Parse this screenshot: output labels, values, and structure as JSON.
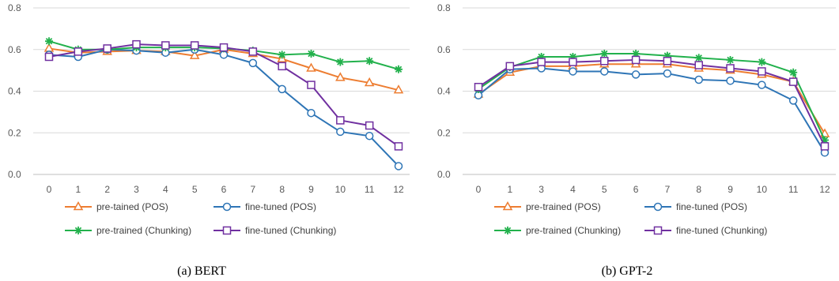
{
  "chart_data": [
    {
      "type": "line",
      "caption": "(a) BERT",
      "categories": [
        "0",
        "1",
        "2",
        "3",
        "4",
        "5",
        "6",
        "7",
        "8",
        "9",
        "10",
        "11",
        "12"
      ],
      "ylim": [
        0,
        0.8
      ],
      "yticks": [
        "0.0",
        "0.2",
        "0.4",
        "0.6",
        "0.8"
      ],
      "grid": true,
      "legend_position": "bottom",
      "series": [
        {
          "name": "pre-tained (POS)",
          "color": "#ED7D31",
          "marker": "triangle",
          "values": [
            0.605,
            0.585,
            0.59,
            0.595,
            0.59,
            0.57,
            0.6,
            0.58,
            0.555,
            0.51,
            0.465,
            0.44,
            0.405
          ]
        },
        {
          "name": "fine-tuned (POS)",
          "color": "#2E75B6",
          "marker": "circle",
          "values": [
            0.575,
            0.565,
            0.6,
            0.595,
            0.585,
            0.6,
            0.575,
            0.535,
            0.41,
            0.295,
            0.205,
            0.185,
            0.04
          ]
        },
        {
          "name": "pre-trained (Chunking)",
          "color": "#22B14C",
          "marker": "star",
          "values": [
            0.64,
            0.6,
            0.6,
            0.61,
            0.61,
            0.61,
            0.605,
            0.595,
            0.575,
            0.58,
            0.54,
            0.545,
            0.505
          ]
        },
        {
          "name": "fine-tuned (Chunking)",
          "color": "#7030A0",
          "marker": "square",
          "values": [
            0.565,
            0.59,
            0.605,
            0.625,
            0.62,
            0.62,
            0.61,
            0.59,
            0.52,
            0.43,
            0.26,
            0.235,
            0.135
          ]
        }
      ]
    },
    {
      "type": "line",
      "caption": "(b) GPT-2",
      "categories": [
        "0",
        "1",
        "3",
        "4",
        "5",
        "6",
        "7",
        "8",
        "9",
        "10",
        "11",
        "12"
      ],
      "ylim": [
        0,
        0.8
      ],
      "yticks": [
        "0.0",
        "0.2",
        "0.4",
        "0.6",
        "0.8"
      ],
      "grid": true,
      "legend_position": "bottom",
      "series": [
        {
          "name": "pre-trained (POS)",
          "color": "#ED7D31",
          "marker": "triangle",
          "values": [
            0.385,
            0.49,
            0.52,
            0.52,
            0.53,
            0.53,
            0.53,
            0.51,
            0.5,
            0.48,
            0.445,
            0.195
          ]
        },
        {
          "name": "fine-tuned (POS)",
          "color": "#2E75B6",
          "marker": "circle",
          "values": [
            0.38,
            0.505,
            0.51,
            0.495,
            0.495,
            0.48,
            0.485,
            0.455,
            0.45,
            0.43,
            0.355,
            0.105
          ]
        },
        {
          "name": "pre-trained (Chunking)",
          "color": "#22B14C",
          "marker": "star",
          "values": [
            0.41,
            0.515,
            0.565,
            0.565,
            0.58,
            0.58,
            0.57,
            0.56,
            0.55,
            0.54,
            0.49,
            0.165
          ]
        },
        {
          "name": "fine-tuned (Chunking)",
          "color": "#7030A0",
          "marker": "square",
          "values": [
            0.42,
            0.52,
            0.54,
            0.54,
            0.545,
            0.55,
            0.545,
            0.525,
            0.51,
            0.495,
            0.445,
            0.135
          ]
        }
      ]
    }
  ]
}
